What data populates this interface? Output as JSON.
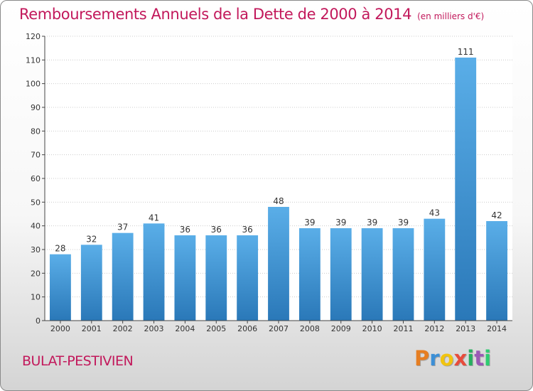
{
  "header": {
    "title": "Remboursements Annuels de la Dette de 2000 à 2014",
    "unit": "(en milliers d'€)"
  },
  "footer": {
    "commune": "BULAT-PESTIVIEN",
    "logo_letters": [
      "P",
      "r",
      "o",
      "x",
      "i",
      "t",
      "i"
    ]
  },
  "colors": {
    "title": "#c2185b",
    "bar_top": "#5aaee8",
    "bar_bottom": "#2a78b8",
    "grid": "#cccccc",
    "logo": [
      "#e67e22",
      "#3c8fd6",
      "#f1c40f",
      "#e74c3c",
      "#27ae60",
      "#9b59b6",
      "#2ecc71"
    ]
  },
  "chart_data": {
    "type": "bar",
    "title": "Remboursements Annuels de la Dette de 2000 à 2014",
    "xlabel": "",
    "ylabel": "",
    "ylim": [
      0,
      120
    ],
    "yticks": [
      0,
      10,
      20,
      30,
      40,
      50,
      60,
      70,
      80,
      90,
      100,
      110,
      120
    ],
    "grid": true,
    "categories": [
      "2000",
      "2001",
      "2002",
      "2003",
      "2004",
      "2005",
      "2006",
      "2007",
      "2008",
      "2009",
      "2010",
      "2011",
      "2012",
      "2013",
      "2014"
    ],
    "values": [
      28,
      32,
      37,
      41,
      36,
      36,
      36,
      48,
      39,
      39,
      39,
      39,
      43,
      111,
      42
    ]
  }
}
